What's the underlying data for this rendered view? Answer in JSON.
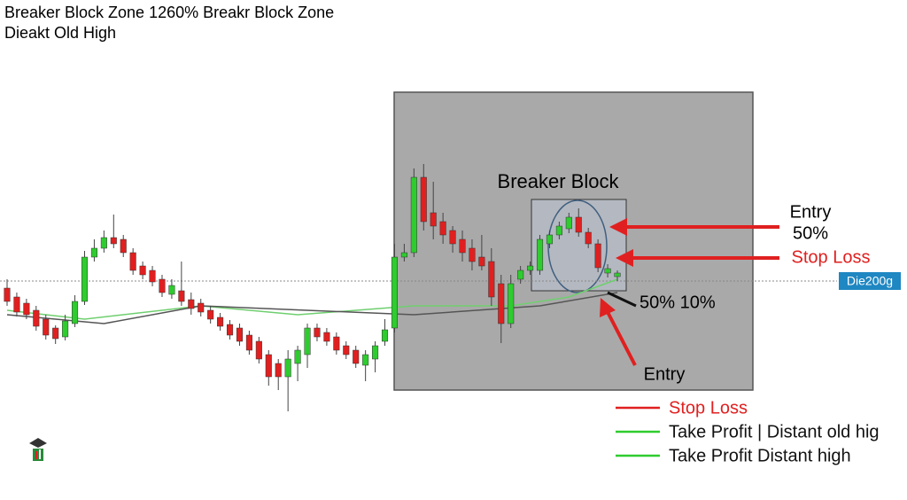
{
  "chart_data": {
    "type": "candlestick",
    "title": "Breaker Block Zone 1260% Breakr Block Zone",
    "subtitle": "Dieakt Old High",
    "up_color": "#2ecc2e",
    "down_color": "#e02020",
    "ylim": [
      89,
      379
    ],
    "open": [
      234,
      224,
      217,
      209,
      199,
      189,
      179,
      194,
      219,
      269,
      279,
      291,
      289,
      274,
      259,
      254,
      244,
      227,
      231,
      221,
      217,
      209,
      201,
      193,
      189,
      181,
      174,
      159,
      149,
      134,
      149,
      159,
      189,
      184,
      179,
      169,
      164,
      147,
      154,
      174,
      189,
      269,
      274,
      359,
      319,
      309,
      299,
      289,
      279,
      269,
      264,
      239,
      194,
      244,
      254,
      254,
      284,
      294,
      301,
      314,
      297,
      284,
      251,
      247
    ],
    "high": [
      244,
      229,
      222,
      214,
      204,
      192,
      204,
      226,
      276,
      289,
      299,
      317,
      294,
      279,
      264,
      259,
      249,
      244,
      264,
      229,
      222,
      214,
      206,
      198,
      194,
      186,
      179,
      164,
      154,
      164,
      169,
      194,
      194,
      189,
      184,
      174,
      169,
      164,
      174,
      199,
      284,
      284,
      369,
      374,
      354,
      319,
      304,
      299,
      289,
      294,
      279,
      249,
      249,
      259,
      264,
      294,
      299,
      309,
      319,
      324,
      302,
      289,
      261,
      254
    ],
    "low": [
      214,
      202,
      199,
      186,
      176,
      171,
      175,
      190,
      215,
      264,
      274,
      279,
      269,
      249,
      244,
      236,
      224,
      222,
      214,
      204,
      202,
      194,
      186,
      176,
      169,
      159,
      149,
      124,
      119,
      95,
      129,
      144,
      174,
      169,
      159,
      154,
      144,
      129,
      139,
      169,
      184,
      264,
      269,
      299,
      289,
      284,
      274,
      264,
      254,
      254,
      214,
      172,
      189,
      239,
      249,
      249,
      279,
      289,
      296,
      292,
      279,
      252,
      246,
      242
    ],
    "close": [
      219,
      207,
      204,
      191,
      181,
      177,
      197,
      219,
      269,
      279,
      291,
      284,
      274,
      254,
      249,
      241,
      229,
      237,
      219,
      211,
      207,
      199,
      191,
      181,
      174,
      164,
      154,
      134,
      134,
      154,
      164,
      189,
      179,
      174,
      164,
      159,
      149,
      159,
      169,
      187,
      269,
      274,
      359,
      309,
      304,
      294,
      284,
      274,
      264,
      259,
      224,
      194,
      239,
      254,
      259,
      289,
      294,
      304,
      314,
      297,
      284,
      257,
      256,
      251
    ],
    "lines": [
      {
        "color": "#6fcf6f",
        "x": [
          0,
          8,
          20,
          30,
          42,
          52,
          58,
          63
        ],
        "values": [
          209,
          199,
          214,
          204,
          214,
          214,
          224,
          244
        ]
      },
      {
        "color": "#555555",
        "x": [
          0,
          10,
          20,
          42,
          55,
          63
        ],
        "values": [
          204,
          194,
          214,
          204,
          214,
          229
        ]
      }
    ],
    "level": {
      "value": 242,
      "label": "Die200g"
    },
    "annotations": [
      "Breaker Block",
      "Entry",
      "50%",
      "Stop Loss",
      "50% 10%",
      "Entry"
    ],
    "legend": [
      {
        "name": "Stop Loss",
        "color": "#e02020"
      },
      {
        "name": "Take Profit | Distant old hig",
        "color": "#2ecc2e"
      },
      {
        "name": "Take Profit Distant high",
        "color": "#2ecc2e"
      }
    ]
  }
}
